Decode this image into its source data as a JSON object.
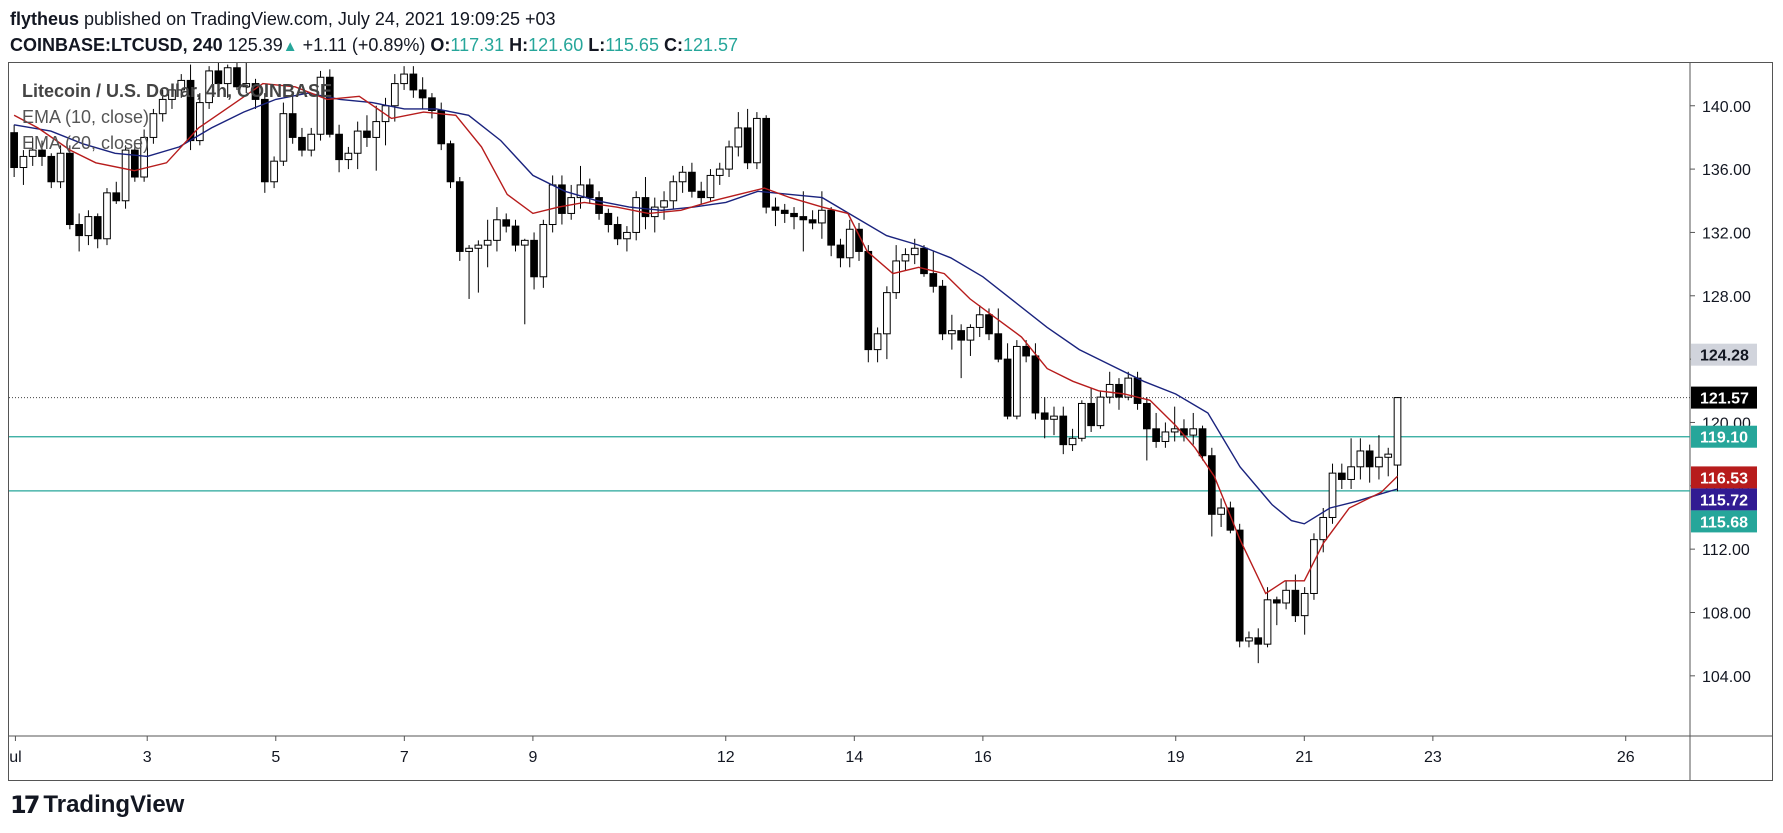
{
  "header": {
    "author": "flytheus",
    "published_text": " published on TradingView.com, July 24, 2021 19:09:25 +03",
    "symbol": "COINBASE:LTCUSD, 240",
    "last": "125.39",
    "change": "+1.11 (+0.89%)",
    "o_label": "O:",
    "o_value": "117.31",
    "h_label": "H:",
    "h_value": "121.60",
    "l_label": "L:",
    "l_value": "115.65",
    "c_label": "C:",
    "c_value": "121.57"
  },
  "legend": {
    "title": "Litecoin / U.S. Dollar, 4h, COINBASE",
    "ema10": "EMA (10, close)",
    "ema20": "EMA (20, close)"
  },
  "footer": {
    "logo_text": "TradingView",
    "logo_icon": "tradingview-logo-icon"
  },
  "colors": {
    "ema10": "#b71c1c",
    "ema20": "#1a237e",
    "hline": "#26a69a",
    "label_current": "#000000",
    "label_hline": "#26a69a",
    "label_ema10": "#b71c1c",
    "label_ema20": "#311b92",
    "label_gray": "#d1d4dc"
  },
  "chart_data": {
    "type": "candlestick",
    "y_ticks": [
      "104.00",
      "108.00",
      "112.00",
      "116.00",
      "120.00",
      "124.00",
      "128.00",
      "132.00",
      "136.00",
      "140.00"
    ],
    "y_range": [
      100.2,
      142.7
    ],
    "x_ticks": [
      {
        "label": "ul",
        "day": 0.95
      },
      {
        "label": "3",
        "day": 3
      },
      {
        "label": "5",
        "day": 5
      },
      {
        "label": "7",
        "day": 7
      },
      {
        "label": "9",
        "day": 9
      },
      {
        "label": "12",
        "day": 12
      },
      {
        "label": "14",
        "day": 14
      },
      {
        "label": "16",
        "day": 16
      },
      {
        "label": "19",
        "day": 19
      },
      {
        "label": "21",
        "day": 21
      },
      {
        "label": "23",
        "day": 23
      },
      {
        "label": "26",
        "day": 26
      }
    ],
    "x_range": [
      0.85,
      27.0
    ],
    "price_labels": [
      {
        "value": "124.28",
        "y": 124.28,
        "style": "gray"
      },
      {
        "value": "121.57",
        "y": 121.57,
        "style": "current"
      },
      {
        "value": "119.10",
        "y": 119.1,
        "style": "hline"
      },
      {
        "value": "116.53",
        "y": 116.53,
        "style": "ema10"
      },
      {
        "value": "115.72",
        "y": 115.72,
        "style": "ema20"
      },
      {
        "value": "115.68",
        "y": 115.68,
        "style": "hline"
      }
    ],
    "horizontal_lines": [
      119.1,
      115.68
    ],
    "current_price_line": 121.57,
    "candles": [
      [
        138.3,
        138.8,
        135.5,
        136.1
      ],
      [
        136.1,
        137.2,
        135.0,
        136.8
      ],
      [
        136.8,
        138.0,
        136.2,
        137.2
      ],
      [
        137.2,
        137.8,
        136.2,
        136.8
      ],
      [
        136.8,
        137.0,
        134.8,
        135.2
      ],
      [
        135.2,
        137.5,
        134.8,
        137.0
      ],
      [
        137.0,
        137.5,
        132.2,
        132.5
      ],
      [
        132.5,
        133.2,
        130.8,
        131.8
      ],
      [
        131.8,
        133.4,
        131.2,
        133.0
      ],
      [
        133.0,
        133.2,
        131.0,
        131.6
      ],
      [
        131.6,
        134.8,
        131.2,
        134.5
      ],
      [
        134.5,
        135.2,
        133.8,
        134.0
      ],
      [
        134.0,
        137.5,
        133.5,
        137.2
      ],
      [
        137.2,
        137.8,
        135.2,
        135.5
      ],
      [
        135.5,
        138.5,
        135.2,
        138.0
      ],
      [
        138.0,
        139.8,
        137.6,
        139.5
      ],
      [
        139.5,
        141.0,
        139.0,
        140.4
      ],
      [
        140.4,
        141.2,
        139.8,
        141.0
      ],
      [
        141.0,
        142.0,
        140.5,
        141.6
      ],
      [
        141.6,
        142.6,
        137.2,
        137.8
      ],
      [
        137.8,
        140.8,
        137.5,
        140.2
      ],
      [
        140.2,
        142.5,
        139.8,
        142.2
      ],
      [
        142.2,
        142.7,
        141.2,
        141.4
      ],
      [
        141.4,
        142.6,
        140.5,
        142.4
      ],
      [
        142.4,
        142.7,
        141.0,
        141.2
      ],
      [
        141.2,
        142.7,
        140.8,
        141.4
      ],
      [
        141.4,
        141.7,
        139.8,
        140.4
      ],
      [
        140.4,
        140.8,
        134.5,
        135.2
      ],
      [
        135.2,
        136.8,
        134.8,
        136.5
      ],
      [
        136.5,
        140.2,
        136.2,
        139.5
      ],
      [
        139.5,
        140.6,
        137.6,
        138.0
      ],
      [
        138.0,
        138.6,
        136.8,
        137.2
      ],
      [
        137.2,
        138.6,
        136.8,
        138.2
      ],
      [
        138.2,
        142.2,
        137.8,
        141.8
      ],
      [
        141.8,
        142.3,
        138.0,
        138.2
      ],
      [
        138.2,
        138.8,
        135.8,
        136.6
      ],
      [
        136.6,
        137.4,
        136.0,
        137.0
      ],
      [
        137.0,
        139.0,
        136.0,
        138.4
      ],
      [
        138.4,
        139.4,
        137.4,
        138.0
      ],
      [
        138.0,
        140.0,
        135.9,
        139.0
      ],
      [
        139.0,
        140.5,
        137.5,
        140.0
      ],
      [
        140.0,
        142.0,
        139.0,
        141.4
      ],
      [
        141.4,
        142.5,
        141.0,
        142.0
      ],
      [
        142.0,
        142.5,
        140.5,
        141.0
      ],
      [
        141.0,
        141.8,
        139.8,
        140.5
      ],
      [
        140.5,
        140.8,
        139.2,
        139.7
      ],
      [
        139.7,
        140.2,
        137.2,
        137.6
      ],
      [
        137.6,
        137.8,
        134.8,
        135.2
      ],
      [
        135.2,
        135.5,
        130.2,
        130.8
      ],
      [
        130.8,
        131.2,
        127.8,
        131.0
      ],
      [
        131.0,
        131.5,
        128.2,
        131.2
      ],
      [
        131.2,
        132.8,
        129.8,
        131.5
      ],
      [
        131.5,
        133.6,
        130.8,
        132.8
      ],
      [
        132.8,
        133.2,
        132.0,
        132.4
      ],
      [
        132.4,
        132.8,
        130.8,
        131.2
      ],
      [
        131.2,
        131.6,
        126.2,
        131.5
      ],
      [
        131.5,
        132.0,
        128.4,
        129.2
      ],
      [
        129.2,
        132.8,
        128.5,
        132.5
      ],
      [
        132.5,
        135.6,
        132.0,
        135.0
      ],
      [
        135.0,
        135.6,
        132.5,
        133.2
      ],
      [
        133.2,
        135.0,
        132.8,
        134.2
      ],
      [
        134.2,
        136.2,
        133.5,
        135.0
      ],
      [
        135.0,
        135.4,
        133.8,
        134.2
      ],
      [
        134.2,
        134.6,
        132.8,
        133.2
      ],
      [
        133.2,
        133.5,
        132.0,
        132.5
      ],
      [
        132.5,
        133.0,
        131.2,
        131.6
      ],
      [
        131.6,
        132.4,
        130.8,
        132.0
      ],
      [
        132.0,
        134.6,
        131.5,
        134.2
      ],
      [
        134.2,
        135.5,
        132.2,
        133.0
      ],
      [
        133.0,
        134.2,
        132.0,
        133.6
      ],
      [
        133.6,
        134.6,
        132.8,
        134.0
      ],
      [
        134.0,
        135.6,
        133.5,
        135.2
      ],
      [
        135.2,
        136.2,
        134.5,
        135.8
      ],
      [
        135.8,
        136.4,
        134.2,
        134.6
      ],
      [
        134.6,
        135.2,
        133.8,
        134.2
      ],
      [
        134.2,
        136.0,
        134.0,
        135.6
      ],
      [
        135.6,
        136.4,
        135.0,
        136.0
      ],
      [
        136.0,
        137.8,
        135.5,
        137.4
      ],
      [
        137.4,
        139.6,
        136.8,
        138.6
      ],
      [
        138.6,
        139.8,
        136.0,
        136.4
      ],
      [
        136.4,
        139.6,
        136.0,
        139.2
      ],
      [
        139.2,
        139.4,
        133.2,
        133.6
      ],
      [
        133.6,
        134.2,
        132.4,
        133.4
      ],
      [
        133.4,
        133.8,
        132.6,
        133.2
      ],
      [
        133.2,
        133.6,
        132.2,
        133.0
      ],
      [
        133.0,
        134.6,
        130.8,
        132.8
      ],
      [
        132.8,
        133.4,
        132.2,
        132.6
      ],
      [
        132.6,
        134.6,
        131.6,
        133.4
      ],
      [
        133.4,
        133.6,
        130.5,
        131.2
      ],
      [
        131.2,
        131.6,
        129.8,
        130.4
      ],
      [
        130.4,
        132.8,
        129.8,
        132.2
      ],
      [
        132.2,
        132.6,
        130.2,
        130.8
      ],
      [
        130.8,
        131.2,
        123.8,
        124.6
      ],
      [
        124.6,
        126.0,
        123.8,
        125.6
      ],
      [
        125.6,
        128.6,
        124.0,
        128.2
      ],
      [
        128.2,
        131.2,
        127.8,
        130.2
      ],
      [
        130.2,
        131.0,
        129.6,
        130.6
      ],
      [
        130.6,
        131.6,
        130.0,
        131.0
      ],
      [
        131.0,
        131.2,
        129.2,
        129.4
      ],
      [
        129.4,
        130.8,
        128.2,
        128.6
      ],
      [
        128.6,
        129.0,
        125.2,
        125.6
      ],
      [
        125.6,
        126.8,
        124.6,
        125.8
      ],
      [
        125.8,
        126.2,
        122.8,
        125.2
      ],
      [
        125.2,
        126.2,
        124.2,
        126.0
      ],
      [
        126.0,
        127.4,
        125.4,
        126.8
      ],
      [
        126.8,
        127.2,
        125.2,
        125.6
      ],
      [
        125.6,
        127.2,
        123.8,
        124.0
      ],
      [
        124.0,
        125.0,
        120.2,
        120.4
      ],
      [
        120.4,
        125.2,
        120.2,
        124.8
      ],
      [
        124.8,
        125.2,
        123.8,
        124.2
      ],
      [
        124.2,
        125.0,
        120.2,
        120.6
      ],
      [
        120.6,
        121.6,
        119.0,
        120.2
      ],
      [
        120.2,
        121.0,
        119.2,
        120.4
      ],
      [
        120.4,
        121.0,
        118.0,
        118.6
      ],
      [
        118.6,
        119.6,
        118.2,
        119.0
      ],
      [
        119.0,
        121.4,
        118.8,
        121.2
      ],
      [
        121.2,
        122.2,
        119.4,
        119.8
      ],
      [
        119.8,
        122.0,
        119.6,
        121.6
      ],
      [
        121.6,
        123.2,
        121.2,
        122.4
      ],
      [
        122.4,
        122.8,
        120.8,
        121.6
      ],
      [
        121.6,
        123.2,
        121.4,
        122.8
      ],
      [
        122.8,
        123.2,
        120.8,
        121.2
      ],
      [
        121.2,
        121.6,
        117.6,
        119.6
      ],
      [
        119.6,
        120.6,
        118.4,
        118.8
      ],
      [
        118.8,
        120.0,
        118.4,
        119.4
      ],
      [
        119.4,
        121.0,
        118.8,
        119.6
      ],
      [
        119.6,
        120.2,
        118.8,
        119.2
      ],
      [
        119.2,
        120.6,
        118.6,
        119.6
      ],
      [
        119.6,
        119.8,
        117.6,
        117.9
      ],
      [
        117.9,
        118.4,
        112.8,
        114.2
      ],
      [
        114.2,
        115.2,
        113.4,
        114.6
      ],
      [
        114.6,
        115.0,
        113.0,
        113.2
      ],
      [
        113.2,
        113.6,
        105.8,
        106.2
      ],
      [
        106.2,
        106.8,
        105.8,
        106.4
      ],
      [
        106.4,
        107.0,
        104.8,
        106.0
      ],
      [
        106.0,
        109.6,
        105.8,
        108.8
      ],
      [
        108.8,
        109.0,
        107.2,
        108.6
      ],
      [
        108.6,
        110.0,
        108.2,
        109.4
      ],
      [
        109.4,
        110.4,
        107.4,
        107.8
      ],
      [
        107.8,
        109.6,
        106.6,
        109.2
      ],
      [
        109.2,
        113.0,
        108.8,
        112.6
      ],
      [
        112.6,
        114.6,
        111.8,
        114.0
      ],
      [
        114.0,
        117.4,
        113.6,
        116.8
      ],
      [
        116.8,
        117.4,
        115.8,
        116.4
      ],
      [
        116.4,
        119.0,
        115.8,
        117.2
      ],
      [
        117.2,
        119.0,
        116.4,
        118.2
      ],
      [
        118.2,
        118.6,
        116.2,
        117.2
      ],
      [
        117.2,
        119.2,
        116.4,
        117.8
      ],
      [
        117.8,
        118.4,
        116.6,
        118.0
      ],
      [
        117.31,
        121.6,
        115.65,
        121.57
      ]
    ],
    "ema10": [
      [
        0.93,
        139.4
      ],
      [
        1.3,
        138.6
      ],
      [
        1.8,
        137.2
      ],
      [
        2.2,
        136.4
      ],
      [
        2.8,
        135.9
      ],
      [
        3.3,
        136.4
      ],
      [
        3.8,
        138.6
      ],
      [
        4.3,
        140.0
      ],
      [
        4.8,
        141.4
      ],
      [
        5.3,
        141.2
      ],
      [
        5.8,
        140.4
      ],
      [
        6.3,
        140.6
      ],
      [
        6.8,
        139.2
      ],
      [
        7.3,
        139.6
      ],
      [
        7.8,
        139.4
      ],
      [
        8.2,
        137.4
      ],
      [
        8.6,
        134.4
      ],
      [
        9.0,
        133.2
      ],
      [
        9.4,
        133.6
      ],
      [
        9.8,
        133.9
      ],
      [
        10.3,
        133.6
      ],
      [
        10.8,
        133.2
      ],
      [
        11.3,
        133.4
      ],
      [
        11.8,
        134.0
      ],
      [
        12.2,
        134.4
      ],
      [
        12.6,
        134.8
      ],
      [
        13.0,
        134.2
      ],
      [
        13.5,
        133.6
      ],
      [
        13.9,
        133.2
      ],
      [
        14.2,
        130.8
      ],
      [
        14.6,
        129.4
      ],
      [
        15.0,
        129.8
      ],
      [
        15.4,
        129.4
      ],
      [
        15.8,
        127.8
      ],
      [
        16.2,
        126.6
      ],
      [
        16.6,
        125.4
      ],
      [
        17.0,
        123.4
      ],
      [
        17.4,
        122.6
      ],
      [
        17.8,
        122.0
      ],
      [
        18.2,
        121.8
      ],
      [
        18.6,
        121.4
      ],
      [
        19.0,
        119.8
      ],
      [
        19.3,
        118.4
      ],
      [
        19.6,
        116.6
      ],
      [
        20.0,
        112.6
      ],
      [
        20.4,
        109.2
      ],
      [
        20.7,
        110.0
      ],
      [
        21.0,
        110.0
      ],
      [
        21.3,
        112.4
      ],
      [
        21.7,
        114.6
      ],
      [
        22.2,
        115.6
      ],
      [
        22.45,
        116.6
      ]
    ],
    "ema20": [
      [
        0.93,
        138.8
      ],
      [
        1.5,
        138.4
      ],
      [
        2.0,
        137.6
      ],
      [
        2.5,
        137.0
      ],
      [
        3.0,
        136.8
      ],
      [
        3.5,
        137.4
      ],
      [
        4.0,
        138.6
      ],
      [
        4.5,
        139.6
      ],
      [
        5.0,
        140.4
      ],
      [
        5.5,
        140.8
      ],
      [
        6.0,
        140.4
      ],
      [
        6.5,
        140.2
      ],
      [
        7.0,
        139.8
      ],
      [
        7.5,
        139.8
      ],
      [
        8.0,
        139.4
      ],
      [
        8.5,
        137.8
      ],
      [
        9.0,
        135.6
      ],
      [
        9.5,
        134.6
      ],
      [
        10.0,
        134.0
      ],
      [
        10.5,
        133.6
      ],
      [
        11.0,
        133.4
      ],
      [
        11.5,
        133.6
      ],
      [
        12.0,
        133.9
      ],
      [
        12.5,
        134.6
      ],
      [
        13.0,
        134.4
      ],
      [
        13.5,
        134.2
      ],
      [
        14.0,
        133.0
      ],
      [
        14.5,
        131.8
      ],
      [
        15.0,
        131.2
      ],
      [
        15.5,
        130.4
      ],
      [
        16.0,
        129.2
      ],
      [
        16.5,
        127.6
      ],
      [
        17.0,
        126.0
      ],
      [
        17.5,
        124.6
      ],
      [
        18.0,
        123.6
      ],
      [
        18.5,
        122.6
      ],
      [
        19.0,
        121.8
      ],
      [
        19.5,
        120.6
      ],
      [
        20.0,
        117.2
      ],
      [
        20.5,
        114.8
      ],
      [
        20.8,
        113.8
      ],
      [
        21.0,
        113.6
      ],
      [
        21.4,
        114.6
      ],
      [
        21.8,
        115.0
      ],
      [
        22.2,
        115.5
      ],
      [
        22.45,
        115.8
      ]
    ]
  }
}
